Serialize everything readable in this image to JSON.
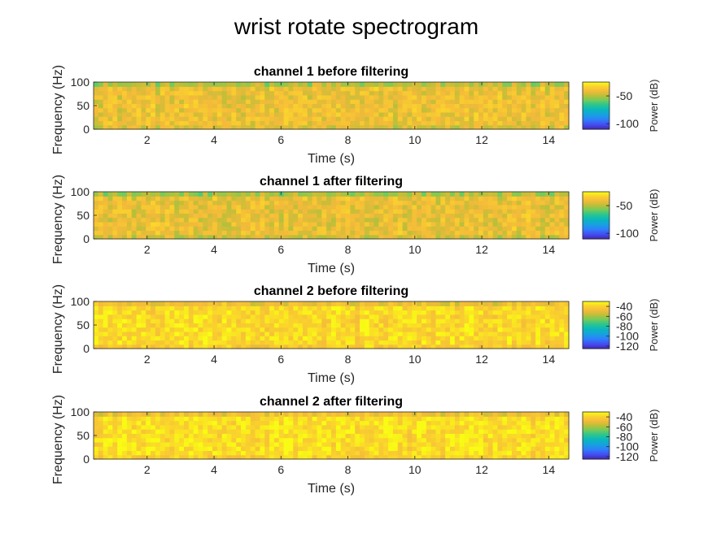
{
  "figure": {
    "title": "wrist rotate spectrogram"
  },
  "chart_data": [
    {
      "type": "heatmap",
      "title": "channel 1 before filtering",
      "xlabel": "Time (s)",
      "ylabel": "Frequency (Hz)",
      "xlim": [
        0.4,
        14.6
      ],
      "ylim": [
        0,
        100
      ],
      "xticks": [
        2,
        4,
        6,
        8,
        10,
        12,
        14
      ],
      "yticks": [
        0,
        50,
        100
      ],
      "colorbar": {
        "label": "Power (dB)",
        "range": [
          -110,
          -25
        ],
        "ticks": [
          -50,
          -100
        ]
      },
      "typical_power_db": -40
    },
    {
      "type": "heatmap",
      "title": "channel 1 after filtering",
      "xlabel": "Time (s)",
      "ylabel": "Frequency (Hz)",
      "xlim": [
        0.4,
        14.6
      ],
      "ylim": [
        0,
        100
      ],
      "xticks": [
        2,
        4,
        6,
        8,
        10,
        12,
        14
      ],
      "yticks": [
        0,
        50,
        100
      ],
      "colorbar": {
        "label": "Power (dB)",
        "range": [
          -110,
          -25
        ],
        "ticks": [
          -50,
          -100
        ]
      },
      "typical_power_db": -41
    },
    {
      "type": "heatmap",
      "title": "channel 2 before filtering",
      "xlabel": "Time (s)",
      "ylabel": "Frequency (Hz)",
      "xlim": [
        0.4,
        14.6
      ],
      "ylim": [
        0,
        100
      ],
      "xticks": [
        2,
        4,
        6,
        8,
        10,
        12,
        14
      ],
      "yticks": [
        0,
        50,
        100
      ],
      "colorbar": {
        "label": "Power (dB)",
        "range": [
          -125,
          -30
        ],
        "ticks": [
          -40,
          -60,
          -80,
          -100,
          -120
        ]
      },
      "typical_power_db": -37
    },
    {
      "type": "heatmap",
      "title": "channel 2 after filtering",
      "xlabel": "Time (s)",
      "ylabel": "Frequency (Hz)",
      "xlim": [
        0.4,
        14.6
      ],
      "ylim": [
        0,
        100
      ],
      "xticks": [
        2,
        4,
        6,
        8,
        10,
        12,
        14
      ],
      "yticks": [
        0,
        50,
        100
      ],
      "colorbar": {
        "label": "Power (dB)",
        "range": [
          -125,
          -30
        ],
        "ticks": [
          -40,
          -60,
          -80,
          -100,
          -120
        ]
      },
      "typical_power_db": -36
    }
  ]
}
